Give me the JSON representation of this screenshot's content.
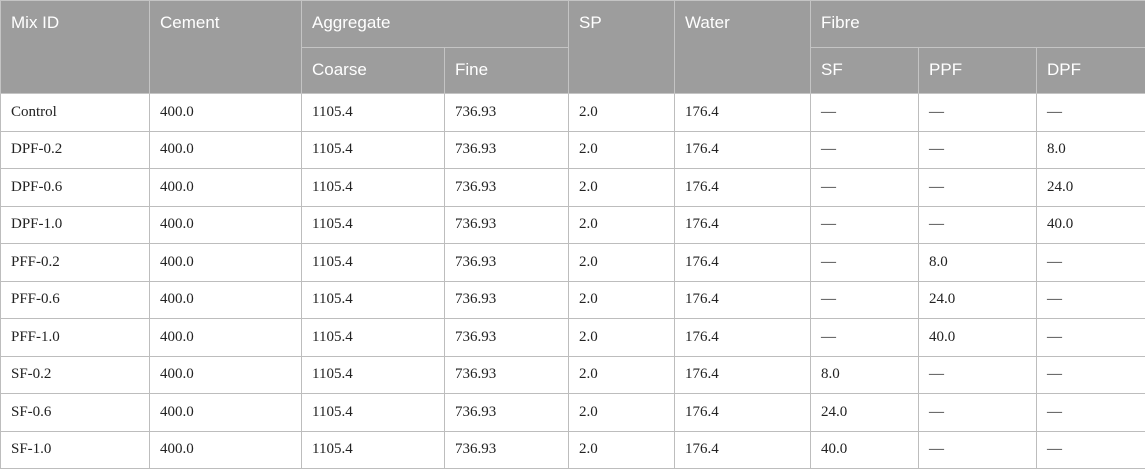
{
  "header": {
    "mix_id": "Mix ID",
    "cement": "Cement",
    "aggregate": "Aggregate",
    "coarse": "Coarse",
    "fine": "Fine",
    "sp": "SP",
    "water": "Water",
    "fibre": "Fibre",
    "sf": "SF",
    "ppf": "PPF",
    "dpf": "DPF"
  },
  "rows": [
    [
      "Control",
      "400.0",
      "1105.4",
      "736.93",
      "2.0",
      "176.4",
      "—",
      "—",
      "—"
    ],
    [
      "DPF-0.2",
      "400.0",
      "1105.4",
      "736.93",
      "2.0",
      "176.4",
      "—",
      "—",
      "8.0"
    ],
    [
      "DPF-0.6",
      "400.0",
      "1105.4",
      "736.93",
      "2.0",
      "176.4",
      "—",
      "—",
      "24.0"
    ],
    [
      "DPF-1.0",
      "400.0",
      "1105.4",
      "736.93",
      "2.0",
      "176.4",
      "—",
      "—",
      "40.0"
    ],
    [
      "PFF-0.2",
      "400.0",
      "1105.4",
      "736.93",
      "2.0",
      "176.4",
      "—",
      "8.0",
      "—"
    ],
    [
      "PFF-0.6",
      "400.0",
      "1105.4",
      "736.93",
      "2.0",
      "176.4",
      "—",
      "24.0",
      "—"
    ],
    [
      "PFF-1.0",
      "400.0",
      "1105.4",
      "736.93",
      "2.0",
      "176.4",
      "—",
      "40.0",
      "—"
    ],
    [
      "SF-0.2",
      "400.0",
      "1105.4",
      "736.93",
      "2.0",
      "176.4",
      "8.0",
      "—",
      "—"
    ],
    [
      "SF-0.6",
      "400.0",
      "1105.4",
      "736.93",
      "2.0",
      "176.4",
      "24.0",
      "—",
      "—"
    ],
    [
      "SF-1.0",
      "400.0",
      "1105.4",
      "736.93",
      "2.0",
      "176.4",
      "40.0",
      "—",
      "—"
    ]
  ]
}
